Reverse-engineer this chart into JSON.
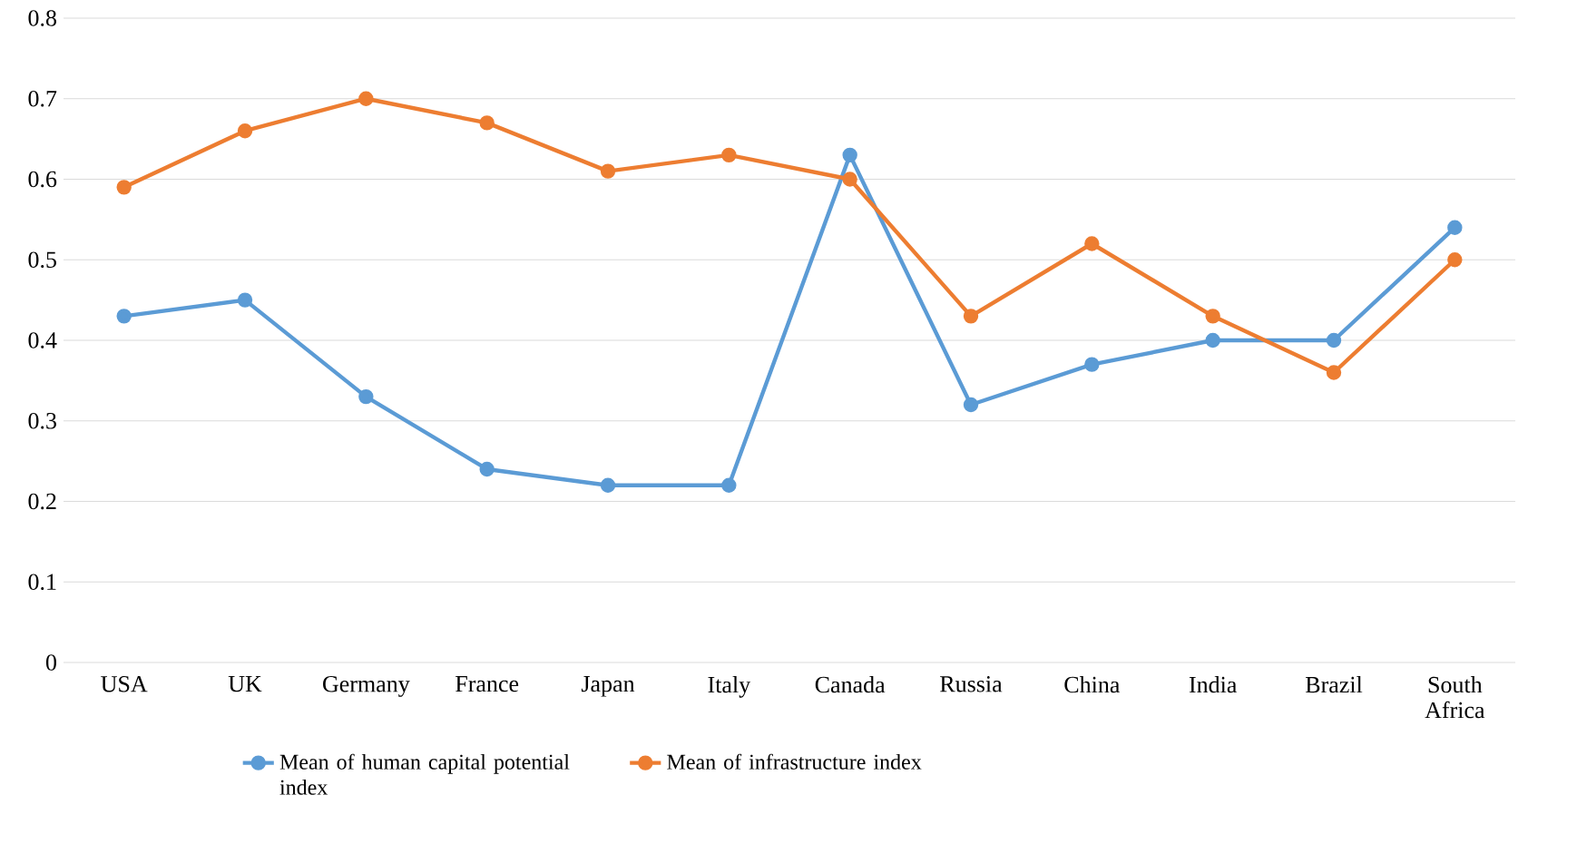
{
  "chart_data": {
    "type": "line",
    "categories": [
      "USA",
      "UK",
      "Germany",
      "France",
      "Japan",
      "Italy",
      "Canada",
      "Russia",
      "China",
      "India",
      "Brazil",
      "South Africa"
    ],
    "series": [
      {
        "name": "Mean of human capital potential index",
        "color": "#5b9bd5",
        "values": [
          0.43,
          0.45,
          0.33,
          0.24,
          0.22,
          0.22,
          0.63,
          0.32,
          0.37,
          0.4,
          0.4,
          0.54
        ]
      },
      {
        "name": "Mean of infrastructure index",
        "color": "#ed7d31",
        "values": [
          0.59,
          0.66,
          0.7,
          0.67,
          0.61,
          0.63,
          0.6,
          0.43,
          0.52,
          0.43,
          0.36,
          0.5
        ]
      }
    ],
    "ylim": [
      0,
      0.8
    ],
    "yticks": [
      0,
      0.1,
      0.2,
      0.3,
      0.4,
      0.5,
      0.6,
      0.7,
      0.8
    ],
    "grid": "y",
    "legend": "bottom",
    "marker": "circle",
    "line_style": "solid"
  }
}
